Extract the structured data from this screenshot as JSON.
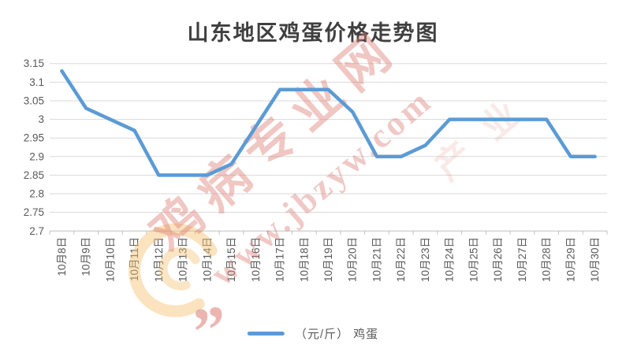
{
  "chart_data": {
    "type": "line",
    "title": "山东地区鸡蛋价格走势图",
    "categories": [
      "10月8日",
      "10月9日",
      "10月10日",
      "10月11日",
      "10月12日",
      "10月13日",
      "10月14日",
      "10月15日",
      "10月16日",
      "10月17日",
      "10月18日",
      "10月19日",
      "10月20日",
      "10月21日",
      "10月22日",
      "10月23日",
      "10月24日",
      "10月25日",
      "10月26日",
      "10月27日",
      "10月28日",
      "10月29日",
      "10月30日"
    ],
    "series": [
      {
        "name": "（元/斤） 鸡蛋",
        "values": [
          3.13,
          3.03,
          3.0,
          2.97,
          2.85,
          2.85,
          2.85,
          2.88,
          2.98,
          3.08,
          3.08,
          3.08,
          3.02,
          2.9,
          2.9,
          2.93,
          3.0,
          3.0,
          3.0,
          3.0,
          3.0,
          2.9,
          2.9
        ]
      }
    ],
    "xlabel": "",
    "ylabel": "",
    "ylim": [
      2.7,
      3.15
    ],
    "yticks": {
      "values": [
        2.7,
        2.75,
        2.8,
        2.85,
        2.9,
        2.95,
        3.0,
        3.05,
        3.1,
        3.15
      ],
      "labels": [
        "2.7",
        "2.75",
        "2.8",
        "2.85",
        "2.9",
        "2.95",
        "3",
        "3.05",
        "3.1",
        "3.15"
      ]
    },
    "grid": true,
    "legend_position": "bottom",
    "colors": {
      "line": "#5B9BD5",
      "grid": "#D9D9D9",
      "axis": "#BFBFBF",
      "tick_label": "#595959",
      "title": "#3F3F3F"
    }
  },
  "legend": {
    "label": "（元/斤） 鸡蛋",
    "swatch_color": "#5B9BD5"
  },
  "watermark": {
    "brand_text": "鸡病专业网",
    "url_text": "www.jbzyw.com",
    "extra_text": "产 业",
    "quote_text": "”",
    "text_color": "#DC7B72",
    "swirl_color": "#F3C06F"
  }
}
